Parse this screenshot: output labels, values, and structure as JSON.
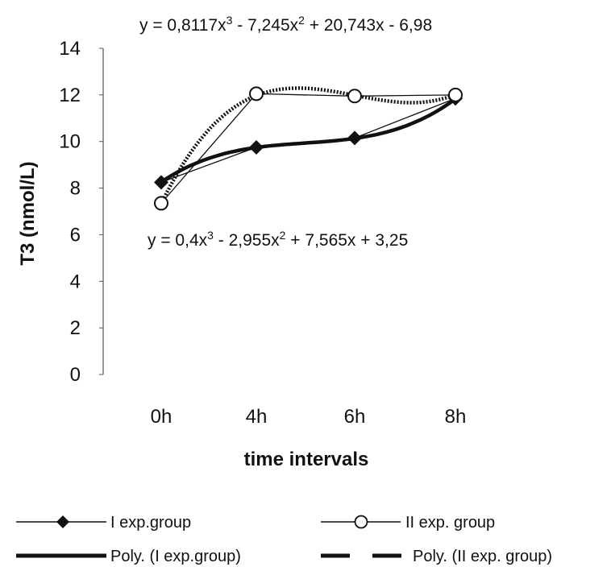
{
  "chart_data": {
    "type": "line",
    "categories": [
      "0h",
      "4h",
      "6h",
      "8h"
    ],
    "ylabel": "T3 (nmol/L)",
    "xlabel": "time intervals",
    "ylim": [
      0,
      14
    ],
    "yticks": [
      0,
      2,
      4,
      6,
      8,
      10,
      12,
      14
    ],
    "grid": false,
    "legend_position": "bottom",
    "series": [
      {
        "name": "I exp.group",
        "values": [
          8.25,
          9.75,
          10.15,
          11.85
        ],
        "marker": "filled-diamond",
        "color": "#111111"
      },
      {
        "name": "II exp. group",
        "values": [
          7.35,
          12.05,
          11.95,
          12.0
        ],
        "marker": "open-circle",
        "color": "#111111"
      }
    ],
    "trendlines": [
      {
        "name": "Poly. (I exp.group)",
        "type": "polynomial",
        "order": 3,
        "coefficients": [
          0.4,
          -2.955,
          7.565,
          3.25
        ],
        "style": "solid-thick"
      },
      {
        "name": "Poly. (II exp. group)",
        "type": "polynomial",
        "order": 3,
        "coefficients": [
          0.8117,
          -7.245,
          20.743,
          -6.98
        ],
        "style": "dashed-thick"
      }
    ],
    "annotations": {
      "eq2": {
        "prefix": "y = 0,8117x",
        "sup1": "3",
        "mid1": " - 7,245x",
        "sup2": "2",
        "tail": " + 20,743x - 6,98"
      },
      "eq1": {
        "prefix": "y = 0,4x",
        "sup1": "3",
        "mid1": " - 2,955x",
        "sup2": "2",
        "tail": " + 7,565x + 3,25"
      }
    }
  }
}
